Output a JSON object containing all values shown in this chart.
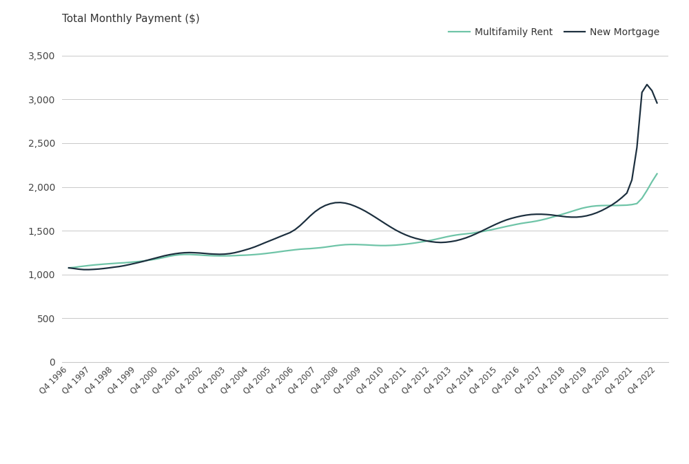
{
  "title": "Total Monthly Payment ($)",
  "legend_rent": "Multifamily Rent",
  "legend_mortgage": "New Mortgage",
  "rent_color": "#6ec4a7",
  "mortgage_color": "#1c2f3e",
  "background_color": "#ffffff",
  "grid_color": "#c8c8c8",
  "ylim": [
    0,
    3500
  ],
  "yticks": [
    0,
    500,
    1000,
    1500,
    2000,
    2500,
    3000,
    3500
  ],
  "quarters": [
    "Q4 1996",
    "Q4 1997",
    "Q4 1998",
    "Q4 1999",
    "Q4 2000",
    "Q4 2001",
    "Q4 2002",
    "Q4 2003",
    "Q4 2004",
    "Q4 2005",
    "Q4 2006",
    "Q4 2007",
    "Q4 2008",
    "Q4 2009",
    "Q4 2010",
    "Q4 2011",
    "Q4 2012",
    "Q4 2013",
    "Q4 2014",
    "Q4 2015",
    "Q4 2016",
    "Q4 2017",
    "Q4 2018",
    "Q4 2019",
    "Q4 2020",
    "Q4 2021",
    "Q4 2022"
  ],
  "rent_full": [
    1075,
    1080,
    1088,
    1095,
    1102,
    1108,
    1113,
    1118,
    1122,
    1126,
    1130,
    1133,
    1138,
    1143,
    1148,
    1155,
    1163,
    1172,
    1183,
    1195,
    1208,
    1218,
    1225,
    1228,
    1228,
    1225,
    1222,
    1218,
    1215,
    1213,
    1212,
    1212,
    1213,
    1215,
    1218,
    1220,
    1223,
    1227,
    1232,
    1238,
    1245,
    1252,
    1260,
    1268,
    1275,
    1282,
    1288,
    1292,
    1295,
    1300,
    1305,
    1312,
    1320,
    1328,
    1335,
    1340,
    1342,
    1342,
    1340,
    1338,
    1335,
    1332,
    1330,
    1330,
    1332,
    1335,
    1340,
    1346,
    1353,
    1361,
    1370,
    1380,
    1390,
    1402,
    1415,
    1428,
    1440,
    1450,
    1458,
    1464,
    1470,
    1478,
    1488,
    1498,
    1510,
    1522,
    1535,
    1548,
    1560,
    1572,
    1583,
    1592,
    1600,
    1610,
    1622,
    1636,
    1652,
    1668,
    1685,
    1702,
    1720,
    1738,
    1755,
    1768,
    1778,
    1784,
    1787,
    1788,
    1788,
    1788,
    1790,
    1792,
    1798,
    1810,
    1870,
    1960,
    2060,
    2150
  ],
  "mortgage_full": [
    1075,
    1068,
    1060,
    1055,
    1055,
    1058,
    1062,
    1068,
    1075,
    1083,
    1090,
    1100,
    1112,
    1125,
    1138,
    1152,
    1168,
    1183,
    1198,
    1213,
    1225,
    1235,
    1243,
    1248,
    1250,
    1248,
    1245,
    1240,
    1235,
    1232,
    1230,
    1232,
    1238,
    1248,
    1262,
    1278,
    1295,
    1315,
    1338,
    1362,
    1385,
    1408,
    1432,
    1455,
    1478,
    1512,
    1558,
    1612,
    1668,
    1718,
    1758,
    1788,
    1808,
    1820,
    1822,
    1815,
    1800,
    1778,
    1752,
    1722,
    1688,
    1652,
    1615,
    1578,
    1542,
    1508,
    1478,
    1452,
    1430,
    1412,
    1398,
    1385,
    1375,
    1368,
    1365,
    1368,
    1375,
    1385,
    1400,
    1418,
    1440,
    1465,
    1492,
    1520,
    1548,
    1575,
    1600,
    1622,
    1640,
    1655,
    1668,
    1678,
    1685,
    1688,
    1688,
    1685,
    1680,
    1672,
    1665,
    1658,
    1655,
    1655,
    1660,
    1670,
    1685,
    1705,
    1730,
    1760,
    1793,
    1832,
    1878,
    1930,
    2080,
    2450,
    3080,
    3170,
    3100,
    2960
  ]
}
